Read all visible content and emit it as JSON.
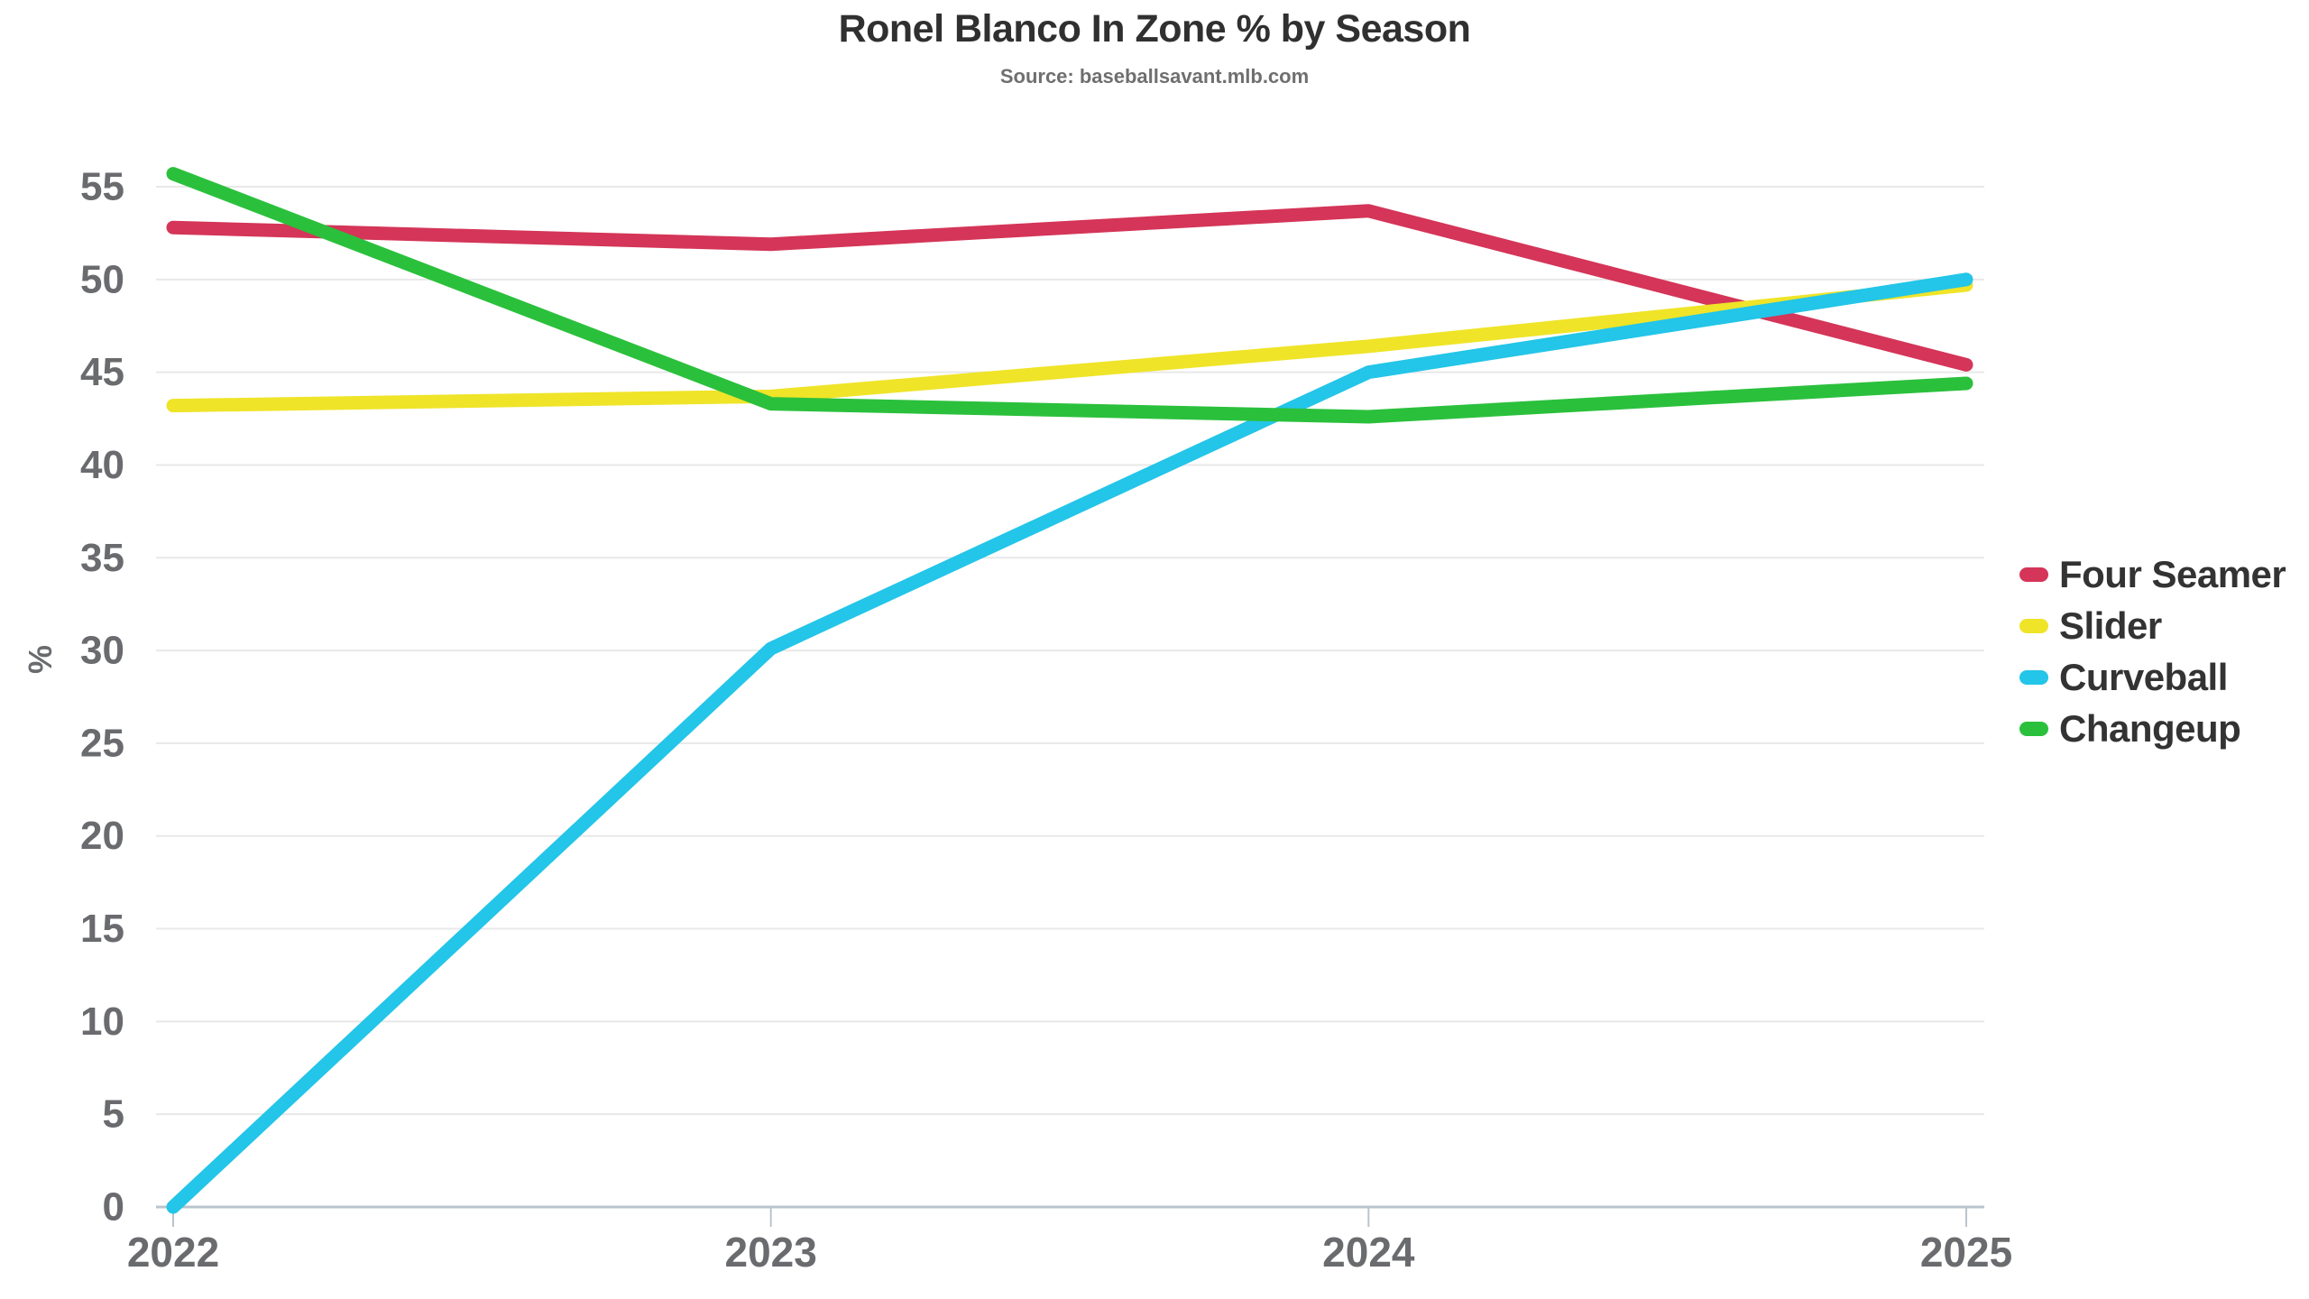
{
  "chart_data": {
    "type": "line",
    "title": "Ronel Blanco In Zone % by Season",
    "subtitle": "Source: baseballsavant.mlb.com",
    "x": [
      "2022",
      "2023",
      "2024",
      "2025"
    ],
    "series": [
      {
        "name": "Four Seamer",
        "color": "#D43558",
        "values": [
          52.8,
          51.9,
          53.7,
          45.4
        ]
      },
      {
        "name": "Slider",
        "color": "#EFE428",
        "values": [
          43.2,
          43.7,
          46.4,
          49.7
        ]
      },
      {
        "name": "Curveball",
        "color": "#23C5E8",
        "values": [
          0.0,
          30.1,
          45.0,
          50.0
        ]
      },
      {
        "name": "Changeup",
        "color": "#2BC03C",
        "values": [
          55.7,
          43.3,
          42.6,
          44.4
        ]
      }
    ],
    "xlabel": "",
    "ylabel": "%",
    "ylim": [
      0,
      57
    ],
    "yticks": [
      0,
      5,
      10,
      15,
      20,
      25,
      30,
      35,
      40,
      45,
      50,
      55
    ],
    "grid": "horizontal",
    "legend_position": "right",
    "colors": {
      "grid": "#E8E8E8",
      "axis": "#B9C4CE",
      "tick_label": "#6A6B6E",
      "title": "#303030",
      "subtitle": "#6F6F6F",
      "legend_text": "#333333"
    }
  }
}
